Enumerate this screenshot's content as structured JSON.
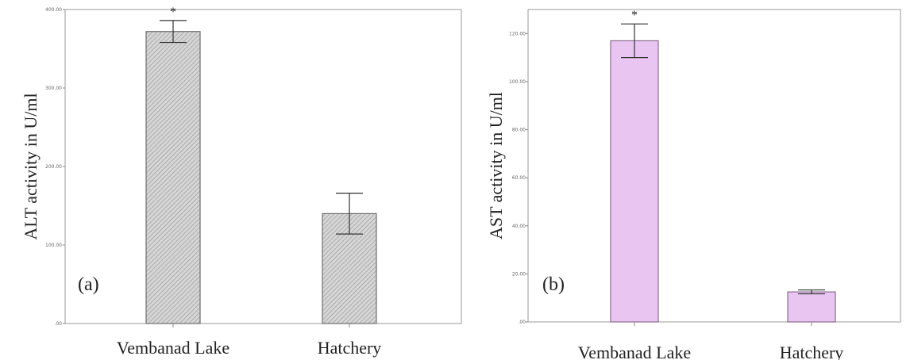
{
  "chart_data": [
    {
      "type": "bar",
      "panel_label": "(a)",
      "ylabel": "ALT activity in U/ml",
      "categories": [
        "Vembanad Lake",
        "Hatchery"
      ],
      "values": [
        372,
        140
      ],
      "errors": [
        14,
        26
      ],
      "significance": [
        "*",
        ""
      ],
      "ylim": [
        0,
        400
      ],
      "yticks": [
        0,
        100,
        200,
        300,
        400
      ],
      "yticklabels": [
        ".00",
        "100.00",
        "200.00",
        "300.00",
        "400.00"
      ],
      "bar_fill": "#d4d4d4",
      "bar_pattern": "diagonal-hatch",
      "bar_stroke": "#6e6e6e",
      "grid": false
    },
    {
      "type": "bar",
      "panel_label": "(b)",
      "ylabel": "AST activity in U/ml",
      "categories": [
        "Vembanad Lake",
        "Hatchery"
      ],
      "values": [
        117,
        12.5
      ],
      "errors": [
        7,
        0.8
      ],
      "significance": [
        "*",
        ""
      ],
      "ylim": [
        0,
        130
      ],
      "yticks": [
        0,
        20,
        40,
        60,
        80,
        100,
        120
      ],
      "yticklabels": [
        ".00",
        "20.00",
        "40.00",
        "60.00",
        "80.00",
        "100.00",
        "120.00"
      ],
      "bar_fill": "#e9c6f2",
      "bar_pattern": "none",
      "bar_stroke": "#8a6a90",
      "grid": false
    }
  ]
}
